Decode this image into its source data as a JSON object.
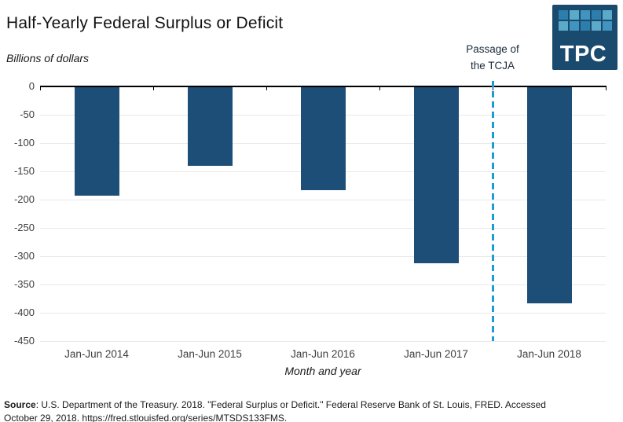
{
  "chart_data": {
    "type": "bar",
    "title": "Half-Yearly Federal Surplus or Deficit",
    "subtitle": "Billions of dollars",
    "categories": [
      "Jan-Jun 2014",
      "Jan-Jun 2015",
      "Jan-Jun 2016",
      "Jan-Jun 2017",
      "Jan-Jun 2018"
    ],
    "values": [
      -193,
      -140,
      -184,
      -313,
      -383
    ],
    "xlabel": "Month and year",
    "ylabel": "Billions of dollars",
    "ylim": [
      -450,
      0
    ],
    "yticks": [
      0,
      -50,
      -100,
      -150,
      -200,
      -250,
      -300,
      -350,
      -400,
      -450
    ],
    "grid": true,
    "legend": "none",
    "bar_color": "#1d4e77",
    "gridline_color": "#e9e9e9",
    "axis_color": "#000000",
    "annotation": {
      "lines": [
        "Passage of",
        "the TCJA"
      ],
      "position": "vertical dashed line between Jan-Jun 2017 and Jan-Jun 2018",
      "boundary_index": 4,
      "line_style": "dashed",
      "line_color": "#1e9bd3"
    }
  },
  "logo": {
    "text": "TPC",
    "background_color": "#1b4a6f",
    "grid_colors": [
      "#2d7dad",
      "#5caac9",
      "#4094bf",
      "#2d7dad",
      "#5caac9",
      "#5caac9",
      "#4094bf",
      "#2d7dad",
      "#5caac9",
      "#4094bf"
    ]
  },
  "source": {
    "label": "Source",
    "line1_rest": ": U.S. Department of the Treasury. 2018. \"Federal Surplus or Deficit.\" Federal Reserve Bank of St. Louis, FRED. Accessed",
    "line2": "October 29, 2018. https://fred.stlouisfed.org/series/MTSDS133FMS."
  }
}
